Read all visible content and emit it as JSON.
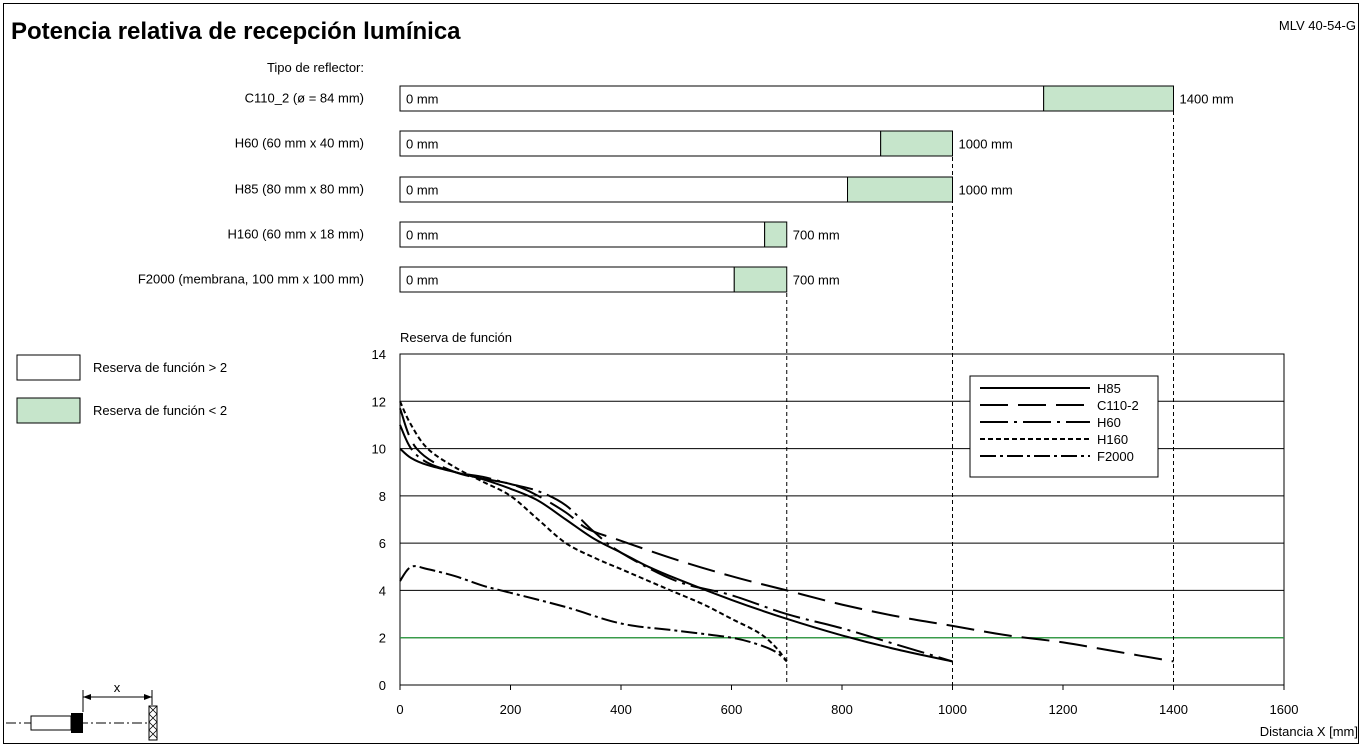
{
  "title": "Potencia relativa de recepción lumínica",
  "code": "MLV 40-54-G",
  "reflector_header": "Tipo de reflector:",
  "colors": {
    "green_fill": "#c6e5cb",
    "threshold_line": "#2ea043",
    "ink": "#000000"
  },
  "legend_boxes": [
    {
      "label": "Reserva de función > 2",
      "fill": "#ffffff"
    },
    {
      "label": "Reserva de función < 2",
      "fill": "#c6e5cb"
    }
  ],
  "chart_data": [
    {
      "type": "bar",
      "title": "",
      "unit": "mm",
      "rows": [
        {
          "label": "C110_2 (ø = 84 mm)",
          "start_label": "0 mm",
          "end_label": "1400 mm",
          "reserve_gt2_to": 1165,
          "max": 1400
        },
        {
          "label": "H60 (60 mm x 40 mm)",
          "start_label": "0 mm",
          "end_label": "1000 mm",
          "reserve_gt2_to": 870,
          "max": 1000
        },
        {
          "label": "H85 (80 mm x 80 mm)",
          "start_label": "0 mm",
          "end_label": "1000 mm",
          "reserve_gt2_to": 810,
          "max": 1000
        },
        {
          "label": "H160 (60 mm x 18 mm)",
          "start_label": "0 mm",
          "end_label": "700 mm",
          "reserve_gt2_to": 660,
          "max": 700
        },
        {
          "label": "F2000 (membrana, 100 mm x 100 mm)",
          "start_label": "0 mm",
          "end_label": "700 mm",
          "reserve_gt2_to": 605,
          "max": 700
        }
      ]
    },
    {
      "type": "line",
      "ylabel": "Reserva de función",
      "xlabel": "Distancia X [mm]",
      "xlim": [
        0,
        1600
      ],
      "ylim": [
        0,
        14
      ],
      "xticks": [
        "0",
        "200",
        "400",
        "600",
        "800",
        "1000",
        "1200",
        "1400",
        "1600"
      ],
      "yticks": [
        "0",
        "2",
        "4",
        "6",
        "8",
        "10",
        "12",
        "14"
      ],
      "grid": "horizontal",
      "legend_position": "top-right",
      "threshold": 2,
      "series": [
        {
          "name": "H85",
          "dash": "",
          "x": [
            0,
            20,
            50,
            100,
            150,
            200,
            250,
            300,
            350,
            400,
            450,
            500,
            600,
            700,
            800,
            900,
            1000
          ],
          "y": [
            10,
            9.6,
            9.3,
            9.0,
            8.7,
            8.3,
            7.8,
            7.0,
            6.2,
            5.6,
            5.0,
            4.5,
            3.6,
            2.8,
            2.1,
            1.5,
            1.0
          ]
        },
        {
          "name": "C110-2",
          "dash": "28,10",
          "x": [
            0,
            30,
            100,
            200,
            250,
            300,
            340,
            400,
            500,
            600,
            700,
            800,
            900,
            1000,
            1100,
            1200,
            1300,
            1400
          ],
          "y": [
            11.7,
            10.0,
            9.0,
            8.5,
            8.0,
            7.3,
            6.6,
            6.1,
            5.3,
            4.6,
            4.0,
            3.4,
            2.9,
            2.5,
            2.1,
            1.8,
            1.4,
            1.0
          ]
        },
        {
          "name": "H60",
          "dash": "28,6,3,6",
          "x": [
            0,
            20,
            50,
            100,
            150,
            200,
            250,
            300,
            350,
            400,
            500,
            600,
            700,
            800,
            900,
            1000
          ],
          "y": [
            11,
            10.0,
            9.4,
            9.0,
            8.8,
            8.5,
            8.2,
            7.6,
            6.5,
            5.6,
            4.4,
            3.8,
            3.0,
            2.4,
            1.7,
            1.0
          ]
        },
        {
          "name": "H160",
          "dash": "5,3",
          "x": [
            0,
            20,
            50,
            100,
            150,
            200,
            250,
            300,
            350,
            400,
            450,
            500,
            550,
            600,
            650,
            680,
            700
          ],
          "y": [
            12,
            11.0,
            10.0,
            9.2,
            8.6,
            8.0,
            7.0,
            6.0,
            5.4,
            4.9,
            4.4,
            3.9,
            3.4,
            2.8,
            2.2,
            1.6,
            1.0
          ]
        },
        {
          "name": "F2000",
          "dash": "16,4,3,4",
          "x": [
            0,
            20,
            50,
            100,
            150,
            200,
            300,
            400,
            500,
            600,
            650,
            680,
            700
          ],
          "y": [
            4.4,
            5.0,
            4.9,
            4.6,
            4.2,
            3.9,
            3.3,
            2.6,
            2.3,
            2.0,
            1.7,
            1.4,
            1.0
          ]
        }
      ]
    }
  ]
}
